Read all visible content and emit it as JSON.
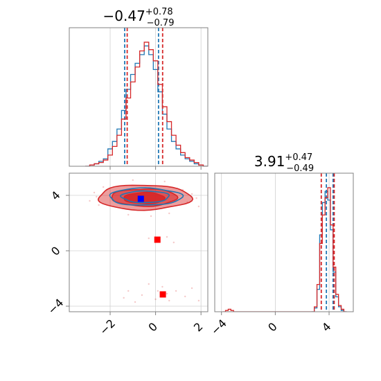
{
  "colors": {
    "blue": "#1f77b4",
    "red": "#d62728",
    "red_marker": "#ff0000",
    "blue_marker": "#0000ff",
    "axis": "#808080",
    "grid": "#d0d0d0"
  },
  "chart_data": [
    {
      "id": "hist-param1",
      "type": "histogram",
      "title": {
        "main": "−0.47",
        "sup": "+0.78",
        "sub": "−0.79"
      },
      "xlim": [
        -3.8,
        2.3
      ],
      "xticks": [
        -2,
        0,
        2
      ],
      "series": [
        {
          "name": "",
          "color": "#1f77b4",
          "quantiles": [
            -1.36,
            0.13
          ],
          "bins": [
            [
              -3.0,
              0.0
            ],
            [
              -2.8,
              0.01
            ],
            [
              -2.6,
              0.02
            ],
            [
              -2.4,
              0.04
            ],
            [
              -2.2,
              0.06
            ],
            [
              -2.0,
              0.14
            ],
            [
              -1.8,
              0.2
            ],
            [
              -1.6,
              0.3
            ],
            [
              -1.4,
              0.45
            ],
            [
              -1.2,
              0.62
            ],
            [
              -1.0,
              0.74
            ],
            [
              -0.8,
              0.83
            ],
            [
              -0.6,
              0.9
            ],
            [
              -0.4,
              0.97
            ],
            [
              -0.2,
              0.9
            ],
            [
              0.0,
              0.78
            ],
            [
              0.2,
              0.6
            ],
            [
              0.4,
              0.42
            ],
            [
              0.6,
              0.3
            ],
            [
              0.8,
              0.2
            ],
            [
              1.0,
              0.14
            ],
            [
              1.2,
              0.09
            ],
            [
              1.4,
              0.06
            ],
            [
              1.6,
              0.04
            ],
            [
              1.8,
              0.02
            ],
            [
              2.0,
              0.01
            ],
            [
              2.2,
              0.0
            ]
          ]
        },
        {
          "name": "",
          "color": "#d62728",
          "quantiles": [
            -1.25,
            0.31
          ],
          "bins": [
            [
              -3.0,
              0.0
            ],
            [
              -2.8,
              0.01
            ],
            [
              -2.6,
              0.02
            ],
            [
              -2.4,
              0.03
            ],
            [
              -2.2,
              0.05
            ],
            [
              -2.0,
              0.09
            ],
            [
              -1.8,
              0.16
            ],
            [
              -1.6,
              0.25
            ],
            [
              -1.4,
              0.38
            ],
            [
              -1.2,
              0.55
            ],
            [
              -1.0,
              0.68
            ],
            [
              -0.8,
              0.8
            ],
            [
              -0.6,
              0.93
            ],
            [
              -0.4,
              1.0
            ],
            [
              -0.2,
              0.94
            ],
            [
              0.0,
              0.85
            ],
            [
              0.2,
              0.66
            ],
            [
              0.4,
              0.48
            ],
            [
              0.6,
              0.36
            ],
            [
              0.8,
              0.25
            ],
            [
              1.0,
              0.17
            ],
            [
              1.2,
              0.11
            ],
            [
              1.4,
              0.07
            ],
            [
              1.6,
              0.05
            ],
            [
              1.8,
              0.03
            ],
            [
              2.0,
              0.01
            ],
            [
              2.2,
              0.0
            ]
          ]
        }
      ]
    },
    {
      "id": "hist-param2",
      "type": "histogram",
      "title": {
        "main": "3.91",
        "sup": "+0.47",
        "sub": "−0.49"
      },
      "xlim": [
        -4.5,
        5.8
      ],
      "xticks": [
        -4,
        0,
        4
      ],
      "series": [
        {
          "name": "",
          "color": "#1f77b4",
          "quantiles": [
            3.8,
            4.3
          ],
          "bins": [
            [
              2.8,
              0.0
            ],
            [
              3.0,
              0.03
            ],
            [
              3.2,
              0.18
            ],
            [
              3.4,
              0.62
            ],
            [
              3.6,
              0.88
            ],
            [
              3.8,
              0.97
            ],
            [
              4.0,
              0.9
            ],
            [
              4.2,
              0.66
            ],
            [
              4.4,
              0.32
            ],
            [
              4.6,
              0.12
            ],
            [
              4.8,
              0.04
            ],
            [
              5.0,
              0.01
            ],
            [
              5.2,
              0.0
            ]
          ]
        },
        {
          "name": "",
          "color": "#d62728",
          "quantiles": [
            3.42,
            4.38
          ],
          "bins": [
            [
              -3.8,
              0.0
            ],
            [
              -3.6,
              0.01
            ],
            [
              -3.4,
              0.02
            ],
            [
              -3.2,
              0.01
            ],
            [
              -3.0,
              0.0
            ],
            [
              2.8,
              0.0
            ],
            [
              3.0,
              0.04
            ],
            [
              3.2,
              0.22
            ],
            [
              3.4,
              0.55
            ],
            [
              3.6,
              0.78
            ],
            [
              3.8,
              0.92
            ],
            [
              4.0,
              1.0
            ],
            [
              4.2,
              0.7
            ],
            [
              4.4,
              0.36
            ],
            [
              4.6,
              0.14
            ],
            [
              4.8,
              0.05
            ],
            [
              5.0,
              0.02
            ],
            [
              5.2,
              0.0
            ]
          ]
        }
      ]
    },
    {
      "id": "scatter-2d",
      "type": "scatter",
      "xlim": [
        -3.8,
        2.3
      ],
      "ylim": [
        -4.4,
        5.6
      ],
      "xticks": [
        -2,
        0,
        2
      ],
      "yticks": [
        -4,
        0,
        4
      ],
      "contours": [
        {
          "color": "#d62728",
          "cx": -0.5,
          "cy": 3.85,
          "rx": 2.05,
          "ry": 0.9,
          "fill": 0.45
        },
        {
          "color": "#d62728",
          "cx": -0.5,
          "cy": 3.85,
          "rx": 1.45,
          "ry": 0.62,
          "fill": 0.6
        },
        {
          "color": "#d62728",
          "cx": -0.5,
          "cy": 3.8,
          "rx": 0.9,
          "ry": 0.4,
          "fill": 0.9
        },
        {
          "color": "#1f77b4",
          "cx": -0.45,
          "cy": 3.9,
          "rx": 1.6,
          "ry": 0.62,
          "fill": 0
        },
        {
          "color": "#1f77b4",
          "cx": -0.45,
          "cy": 3.9,
          "rx": 1.05,
          "ry": 0.42,
          "fill": 0
        }
      ],
      "markers": [
        {
          "color": "#0000ff",
          "x": -0.65,
          "y": 3.75
        },
        {
          "color": "#ff0000",
          "x": 0.08,
          "y": 0.8
        },
        {
          "color": "#ff0000",
          "x": 0.32,
          "y": -3.15
        }
      ],
      "faint_points": [
        [
          -2.9,
          3.6
        ],
        [
          -2.7,
          4.2
        ],
        [
          -2.5,
          3.3
        ],
        [
          -2.3,
          4.6
        ],
        [
          -2.6,
          3.9
        ],
        [
          1.4,
          3.5
        ],
        [
          1.6,
          4.1
        ],
        [
          1.8,
          3.8
        ],
        [
          1.2,
          4.4
        ],
        [
          1.9,
          3.2
        ],
        [
          -1.2,
          2.6
        ],
        [
          0.6,
          2.7
        ],
        [
          -0.2,
          2.5
        ],
        [
          0.4,
          5.0
        ],
        [
          -1.0,
          5.1
        ],
        [
          0.5,
          1.0
        ],
        [
          0.8,
          0.6
        ],
        [
          -0.3,
          0.9
        ],
        [
          -1.2,
          -2.9
        ],
        [
          -0.6,
          -3.2
        ],
        [
          -0.3,
          -2.4
        ],
        [
          0.0,
          -3.5
        ],
        [
          0.3,
          -2.6
        ],
        [
          0.6,
          -3.6
        ],
        [
          0.9,
          -2.9
        ],
        [
          1.3,
          -3.3
        ],
        [
          -0.9,
          -3.7
        ],
        [
          1.6,
          -2.7
        ],
        [
          1.9,
          -3.6
        ],
        [
          -1.4,
          -3.4
        ],
        [
          0.1,
          -2.9
        ],
        [
          0.5,
          -3.1
        ]
      ]
    }
  ]
}
